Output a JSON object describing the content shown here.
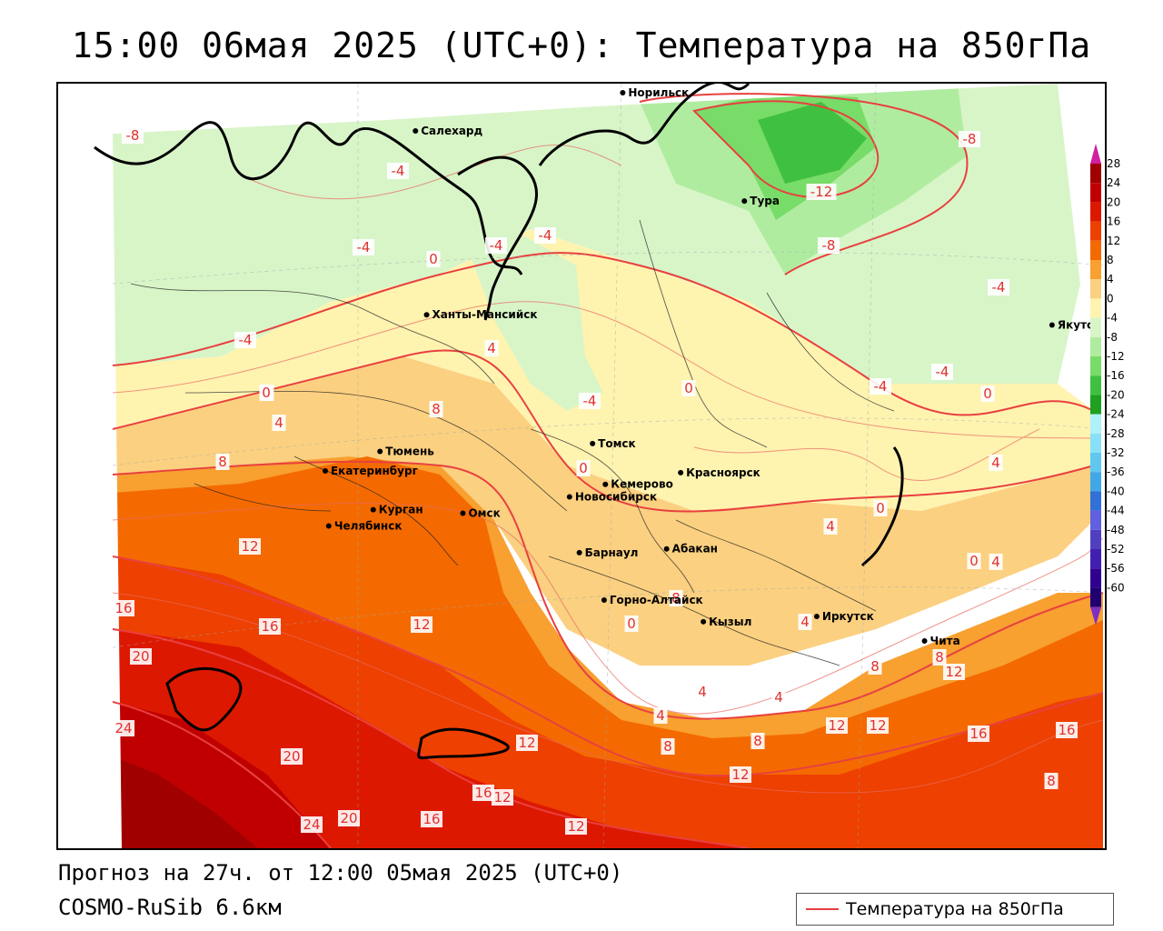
{
  "title": "15:00 06мая 2025 (UTC+0): Температура на 850гПа",
  "footer": {
    "forecast": "Прогноз на 27ч. от 12:00 05мая 2025 (UTC+0)",
    "model": "COSMO-RuSib 6.6км"
  },
  "legend": {
    "label": "Температура на 850гПа",
    "line_color": "#e84040"
  },
  "colorbar": {
    "levels": [
      "28",
      "24",
      "20",
      "16",
      "12",
      "8",
      "4",
      "0",
      "-4",
      "-8",
      "-12",
      "-16",
      "-20",
      "-24",
      "-28",
      "-32",
      "-36",
      "-40",
      "-44",
      "-48",
      "-52",
      "-56",
      "-60"
    ],
    "colors": [
      "#a00000",
      "#c00000",
      "#dd1800",
      "#ee4000",
      "#f46a00",
      "#f8a030",
      "#fbd080",
      "#fff3b0",
      "#d8f5c8",
      "#b0eca0",
      "#78dc68",
      "#40c040",
      "#20a020",
      "#b0f0f8",
      "#88e0f8",
      "#60c8f0",
      "#40a8e8",
      "#3070d8",
      "#6060e0",
      "#5040c0",
      "#4020b0",
      "#300090",
      "#200070"
    ],
    "top_arrow_color": "#d020a0",
    "bottom_arrow_color": "#8030c0"
  },
  "cities": [
    {
      "name": "Норильск",
      "lon": 88.2,
      "lat": 69.35
    },
    {
      "name": "Якутск",
      "lon": 129.7,
      "lat": 62.0
    },
    {
      "name": "Салехард",
      "lon": 66.6,
      "lat": 66.5
    },
    {
      "name": "Тура",
      "lon": 100.2,
      "lat": 64.3
    },
    {
      "name": "Ханты-Мансийск",
      "lon": 69.0,
      "lat": 61.0
    },
    {
      "name": "Екатеринбург",
      "lon": 60.6,
      "lat": 56.8
    },
    {
      "name": "Тюмень",
      "lon": 65.5,
      "lat": 57.15
    },
    {
      "name": "Челябинск",
      "lon": 61.4,
      "lat": 55.15
    },
    {
      "name": "Курган",
      "lon": 65.3,
      "lat": 55.45
    },
    {
      "name": "Омск",
      "lon": 73.4,
      "lat": 54.98
    },
    {
      "name": "Новосибирск",
      "lon": 82.9,
      "lat": 55.03
    },
    {
      "name": "Томск",
      "lon": 84.95,
      "lat": 56.5
    },
    {
      "name": "Кемерово",
      "lon": 86.1,
      "lat": 55.35
    },
    {
      "name": "Красноярск",
      "lon": 92.9,
      "lat": 56.0
    },
    {
      "name": "Абакан",
      "lon": 91.45,
      "lat": 53.7
    },
    {
      "name": "Барнаул",
      "lon": 83.8,
      "lat": 53.35
    },
    {
      "name": "Горно-Алтайск",
      "lon": 85.95,
      "lat": 51.95
    },
    {
      "name": "Кызыл",
      "lon": 94.45,
      "lat": 51.7
    },
    {
      "name": "Иркутск",
      "lon": 104.3,
      "lat": 52.3
    },
    {
      "name": "Чита",
      "lon": 113.5,
      "lat": 52.0
    }
  ],
  "contour_labels": [
    {
      "text": "-8"
    },
    {
      "text": "-4"
    },
    {
      "text": "-4"
    },
    {
      "text": "-4"
    },
    {
      "text": "-4"
    },
    {
      "text": "0"
    },
    {
      "text": "-4"
    },
    {
      "text": "4"
    },
    {
      "text": "0"
    },
    {
      "text": "4"
    },
    {
      "text": "8"
    },
    {
      "text": "-4"
    },
    {
      "text": "0"
    },
    {
      "text": "8"
    },
    {
      "text": "0"
    },
    {
      "text": "12"
    },
    {
      "text": "16"
    },
    {
      "text": "16"
    },
    {
      "text": "12"
    },
    {
      "text": "20"
    },
    {
      "text": "24"
    },
    {
      "text": "20"
    },
    {
      "text": "24"
    },
    {
      "text": "20"
    },
    {
      "text": "16"
    },
    {
      "text": "16"
    },
    {
      "text": "12"
    },
    {
      "text": "12"
    },
    {
      "text": "12"
    },
    {
      "text": "12"
    },
    {
      "text": "8"
    },
    {
      "text": "8"
    },
    {
      "text": "4"
    },
    {
      "text": "4"
    },
    {
      "text": "4"
    },
    {
      "text": "8"
    },
    {
      "text": "8"
    },
    {
      "text": "12"
    },
    {
      "text": "12"
    },
    {
      "text": "16"
    },
    {
      "text": "16"
    },
    {
      "text": "12"
    },
    {
      "text": "8"
    },
    {
      "text": "4"
    },
    {
      "text": "4"
    },
    {
      "text": "0"
    },
    {
      "text": "-4"
    },
    {
      "text": "-4"
    },
    {
      "text": "0"
    },
    {
      "text": "-4"
    },
    {
      "text": "-8"
    },
    {
      "text": "-12"
    },
    {
      "text": "-8"
    },
    {
      "text": "4"
    },
    {
      "text": "0"
    },
    {
      "text": "0"
    },
    {
      "text": "8"
    },
    {
      "text": "4"
    },
    {
      "text": "0"
    }
  ]
}
